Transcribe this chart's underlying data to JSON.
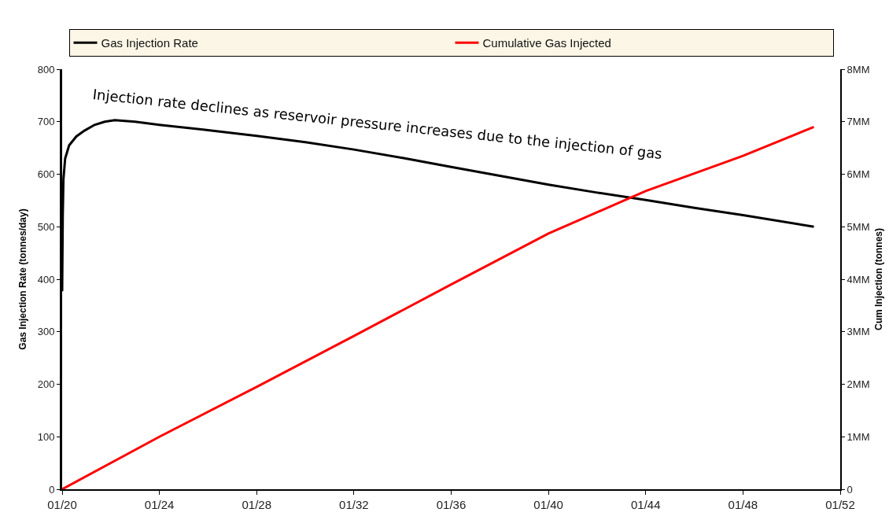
{
  "chart_data": {
    "type": "line",
    "xlabel": null,
    "ylabel": "Gas Injection Rate (tonnes/day)",
    "y2label": "Cum Injection (tonnes)",
    "annotations": [
      "Injection rate declines as reservoir pressure increases due to the injection of gas"
    ],
    "series": [
      {
        "name": "Gas Injection Rate",
        "color": "#000000",
        "x": [
          "2020-01-01",
          "2020-01-10",
          "2020-01-20",
          "2020-02-15",
          "2020-04-15",
          "2020-08-01",
          "2020-12-01",
          "2021-05-01",
          "2021-10-01",
          "2022-03-01",
          "2023-01-01",
          "2024-01-01",
          "2026-01-01",
          "2028-01-01",
          "2030-01-01",
          "2032-01-01",
          "2034-01-01",
          "2036-01-01",
          "2038-01-01",
          "2040-01-01",
          "2042-01-01",
          "2044-01-01",
          "2046-01-01",
          "2048-01-01",
          "2050-12-01"
        ],
        "values": [
          377,
          520,
          590,
          630,
          655,
          672,
          683,
          694,
          700,
          703,
          700,
          694,
          684,
          673,
          661,
          647,
          631,
          614,
          597,
          580,
          565,
          551,
          536,
          522,
          500
        ]
      },
      {
        "name": "Cumulative Gas Injected",
        "color": "#ff0000",
        "axis": "y2",
        "x": [
          "2020-01-01",
          "2024-01-01",
          "2028-01-01",
          "2032-01-01",
          "2036-01-01",
          "2040-01-01",
          "2044-01-01",
          "2048-01-01",
          "2050-12-01"
        ],
        "values": [
          0,
          1,
          1.95,
          2.92,
          3.9,
          4.87,
          5.68,
          6.35,
          6.9
        ]
      }
    ],
    "xlim": [
      "2020-01-01",
      "2052-01-01"
    ],
    "xticks": [
      {
        "value": "2020-01-01",
        "label": "01/20"
      },
      {
        "value": "2024-01-01",
        "label": "01/24"
      },
      {
        "value": "2028-01-01",
        "label": "01/28"
      },
      {
        "value": "2032-01-01",
        "label": "01/32"
      },
      {
        "value": "2036-01-01",
        "label": "01/36"
      },
      {
        "value": "2040-01-01",
        "label": "01/40"
      },
      {
        "value": "2044-01-01",
        "label": "01/44"
      },
      {
        "value": "2048-01-01",
        "label": "01/48"
      },
      {
        "value": "2052-01-01",
        "label": "01/52"
      }
    ],
    "ylim": [
      0,
      800
    ],
    "yticks": [
      0,
      100,
      200,
      300,
      400,
      500,
      600,
      700,
      800
    ],
    "y2lim": [
      0,
      8
    ],
    "y2ticks": [
      0,
      {
        "value": 1,
        "label": "1MM"
      },
      {
        "value": 2,
        "label": "2MM"
      },
      {
        "value": 3,
        "label": "3MM"
      },
      {
        "value": 4,
        "label": "4MM"
      },
      {
        "value": 5,
        "label": "5MM"
      },
      {
        "value": 6,
        "label": "6MM"
      },
      {
        "value": 7,
        "label": "7MM"
      },
      {
        "value": 8,
        "label": "8MM"
      }
    ],
    "grid": false,
    "legend": "top",
    "marker": "none",
    "line_style": "solid"
  }
}
